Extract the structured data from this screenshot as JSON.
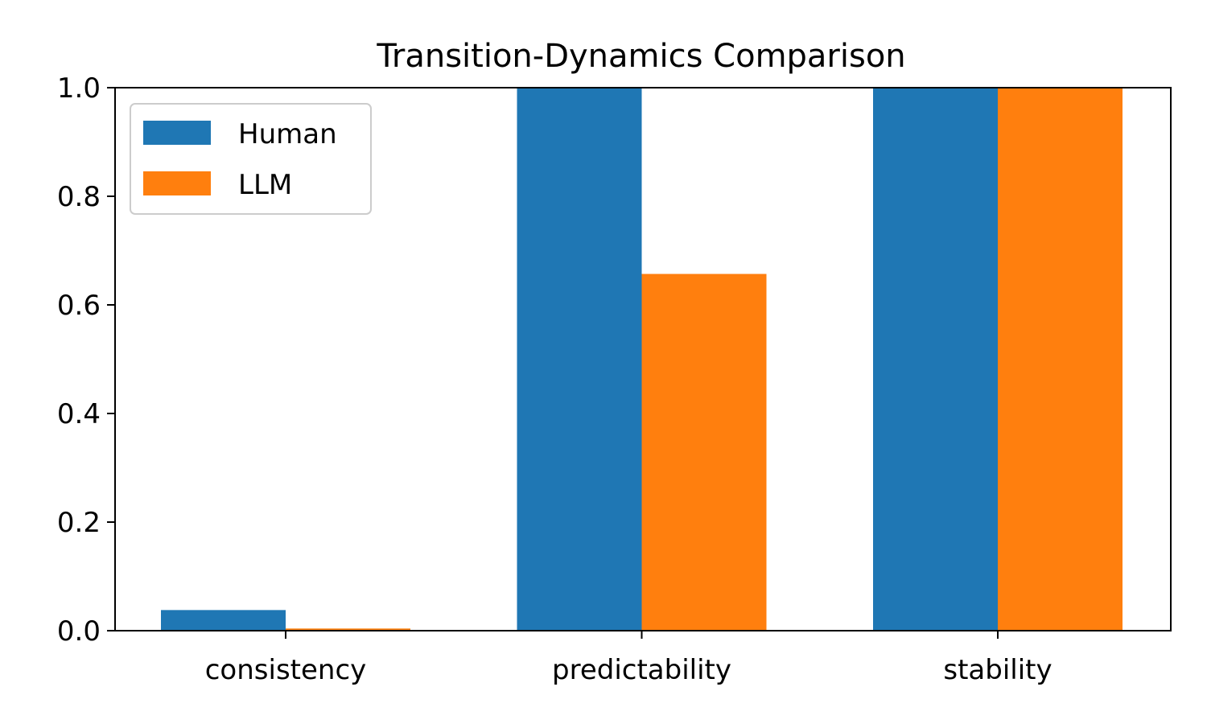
{
  "chart_data": {
    "type": "bar",
    "title": "Transition-Dynamics Comparison",
    "xlabel": "",
    "ylabel": "",
    "categories": [
      "consistency",
      "predictability",
      "stability"
    ],
    "series": [
      {
        "name": "Human",
        "values": [
          0.038,
          1.0,
          1.0
        ],
        "color": "#1f77b4"
      },
      {
        "name": "LLM",
        "values": [
          0.004,
          0.657,
          1.0
        ],
        "color": "#ff7f0e"
      }
    ],
    "ylim": [
      0,
      1.0
    ],
    "yticks": [
      "0.0",
      "0.2",
      "0.4",
      "0.6",
      "0.8",
      "1.0"
    ],
    "grid": false,
    "legend_position": "top-left"
  }
}
